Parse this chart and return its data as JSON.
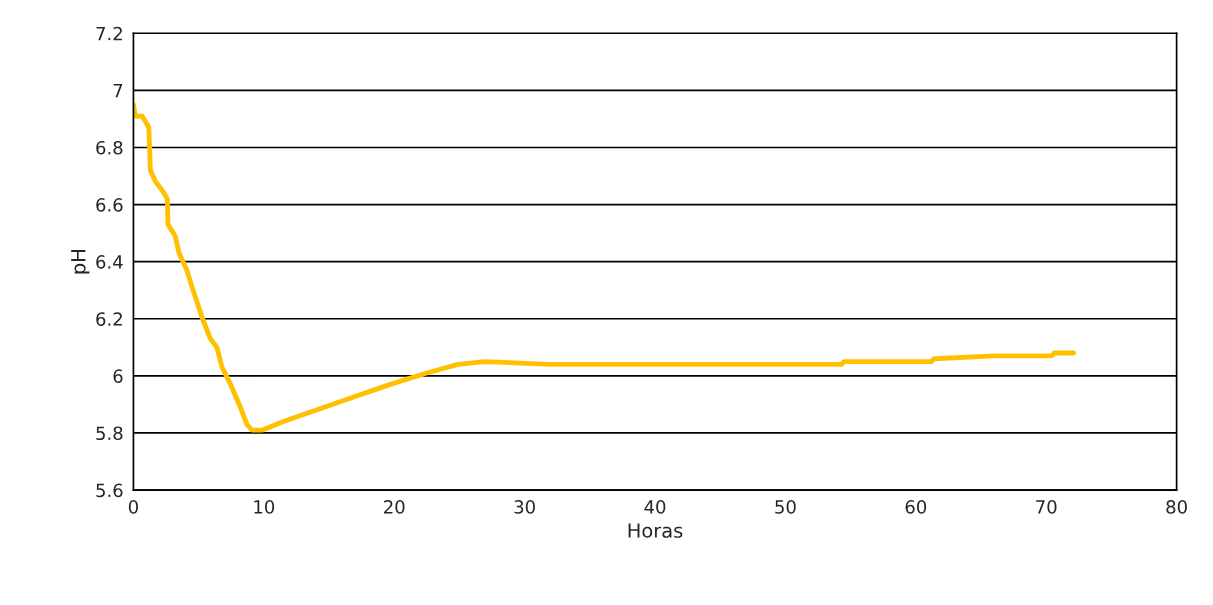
{
  "chart_data": {
    "type": "line",
    "xlabel": "Horas",
    "ylabel": "pH",
    "x": [
      0,
      0.15,
      0.67,
      1.18,
      1.3,
      1.7,
      2.2,
      2.6,
      2.65,
      3.2,
      3.5,
      4.1,
      4.5,
      5.3,
      5.9,
      6.4,
      6.8,
      7.45,
      8.2,
      8.7,
      9.1,
      9.9,
      11.5,
      15.9,
      19.7,
      22.5,
      24.9,
      26.9,
      32.0,
      53.5,
      54.3,
      54.5,
      61.2,
      61.4,
      66.0,
      70.4,
      70.6,
      72.1
    ],
    "series": [
      {
        "color": "#ffc000",
        "values": [
          6.95,
          6.91,
          6.91,
          6.87,
          6.72,
          6.68,
          6.65,
          6.62,
          6.53,
          6.49,
          6.43,
          6.37,
          6.31,
          6.2,
          6.13,
          6.1,
          6.03,
          5.97,
          5.89,
          5.83,
          5.81,
          5.81,
          5.84,
          5.91,
          5.97,
          6.01,
          6.04,
          6.05,
          6.04,
          6.04,
          6.04,
          6.05,
          6.05,
          6.06,
          6.07,
          6.07,
          6.08,
          6.08
        ]
      }
    ],
    "xlim": [
      0,
      80
    ],
    "xticks": [
      0,
      10,
      20,
      30,
      40,
      50,
      60,
      70,
      80
    ],
    "ylim": [
      5.6,
      7.2
    ],
    "yticks": [
      5.6,
      5.8,
      6,
      6.2,
      6.4,
      6.6,
      6.8,
      7,
      7.2
    ],
    "grid": "y",
    "marker": "none",
    "line_style": "solid"
  }
}
